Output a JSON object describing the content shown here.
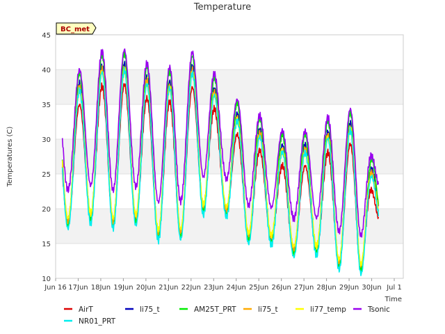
{
  "chart_data": {
    "type": "line",
    "title": "Temperature",
    "ylabel": "Temperatures (C)",
    "xlabel": "Time",
    "ylim": [
      10,
      45
    ],
    "yticks": [
      10,
      15,
      20,
      25,
      30,
      35,
      40,
      45
    ],
    "xlim": [
      15.6,
      31.0
    ],
    "xticks": [
      {
        "v": 15.6,
        "label": "Jun 16"
      },
      {
        "v": 16.6,
        "label": "17Jun"
      },
      {
        "v": 17.6,
        "label": "18Jun"
      },
      {
        "v": 18.6,
        "label": "19Jun"
      },
      {
        "v": 19.6,
        "label": "20Jun"
      },
      {
        "v": 20.6,
        "label": "21Jun"
      },
      {
        "v": 21.6,
        "label": "22Jun"
      },
      {
        "v": 22.6,
        "label": "23Jun"
      },
      {
        "v": 23.6,
        "label": "24Jun"
      },
      {
        "v": 24.6,
        "label": "25Jun"
      },
      {
        "v": 25.6,
        "label": "26Jun"
      },
      {
        "v": 26.6,
        "label": "27Jun"
      },
      {
        "v": 27.6,
        "label": "28Jun"
      },
      {
        "v": 28.6,
        "label": "29Jun"
      },
      {
        "v": 29.6,
        "label": "30Jun"
      },
      {
        "v": 30.6,
        "label": "Jul 1"
      }
    ],
    "grid": "horizontal bands",
    "station_label": "BC_met",
    "daily_minmax": [
      {
        "day": 16,
        "min": 18.0,
        "max": 33.0
      },
      {
        "day": 17,
        "min": 19.0,
        "max": 36.0
      },
      {
        "day": 18,
        "min": 18.0,
        "max": 38.5
      },
      {
        "day": 19,
        "min": 19.0,
        "max": 37.5
      },
      {
        "day": 20,
        "min": 16.5,
        "max": 35.0
      },
      {
        "day": 21,
        "min": 16.0,
        "max": 35.5
      },
      {
        "day": 22,
        "min": 20.0,
        "max": 38.5
      },
      {
        "day": 23,
        "min": 20.5,
        "max": 32.0
      },
      {
        "day": 24,
        "min": 16.0,
        "max": 30.0
      },
      {
        "day": 25,
        "min": 16.0,
        "max": 27.5
      },
      {
        "day": 26,
        "min": 14.0,
        "max": 25.5
      },
      {
        "day": 27,
        "min": 14.5,
        "max": 26.5
      },
      {
        "day": 28,
        "min": 12.5,
        "max": 29.0
      },
      {
        "day": 29,
        "min": 10.5,
        "max": 29.5
      },
      {
        "day": 30,
        "min": 18.5,
        "max": 18.5
      }
    ],
    "series": [
      {
        "name": "AirT",
        "color": "#dd0000",
        "offset_max": 0.0,
        "offset_min": 0.0
      },
      {
        "name": "li75_t",
        "color": "#0000bb",
        "offset_max": 3.0,
        "offset_min": -0.2
      },
      {
        "name": "AM25T_PRT",
        "color": "#00ee00",
        "offset_max": 4.5,
        "offset_min": -0.5
      },
      {
        "name": "li75_t",
        "color": "#ffaa00",
        "offset_max": 2.5,
        "offset_min": 0.2
      },
      {
        "name": "li77_temp",
        "color": "#ffff00",
        "offset_max": 2.0,
        "offset_min": 0.5
      },
      {
        "name": "Tsonic",
        "color": "#9900ee",
        "offset_max": 5.0,
        "offset_min": 4.5
      },
      {
        "name": "NR01_PRT",
        "color": "#00eeee",
        "offset_max": 2.0,
        "offset_min": -1.0
      }
    ]
  }
}
